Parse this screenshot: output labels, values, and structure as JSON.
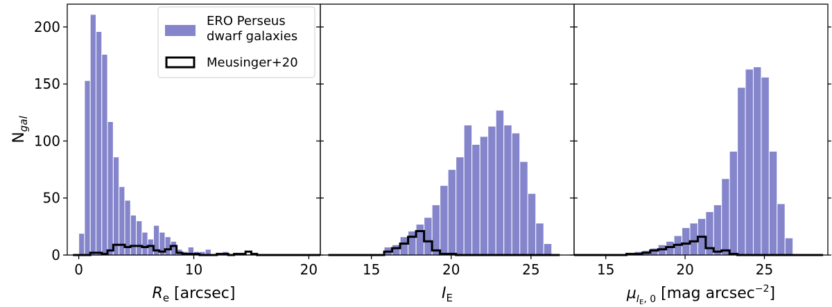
{
  "colors": {
    "bar_fill": "#8585cc",
    "bar_edge": "#ffffff",
    "step_line": "#000000",
    "frame": "#000000"
  },
  "legend": {
    "placement": "top-right of first panel",
    "entries": [
      {
        "label_line1": "ERO Perseus",
        "label_line2": "dwarf galaxies",
        "style": "filled"
      },
      {
        "label_line1": "Meusinger+20",
        "label_line2": "",
        "style": "step"
      }
    ]
  },
  "y_axis": {
    "label_main": "N",
    "label_sub": "gal",
    "lim": [
      0,
      220
    ],
    "ticks": [
      0,
      50,
      100,
      150,
      200
    ]
  },
  "chart_data": [
    {
      "type": "bar",
      "panel": "Re",
      "xlabel_main": "R",
      "xlabel_sub": "e",
      "xlabel_rest": " [arcsec]",
      "xlim": [
        -1,
        21
      ],
      "xticks": [
        0,
        10,
        20
      ],
      "ero_bins": {
        "start": 0.0,
        "width": 0.5,
        "values": [
          19,
          153,
          211,
          196,
          176,
          117,
          86,
          60,
          48,
          35,
          30,
          20,
          14,
          26,
          20,
          16,
          12,
          5,
          3,
          7,
          3,
          3,
          5,
          1,
          2,
          3,
          1,
          1,
          1,
          1,
          1
        ]
      },
      "meusinger_bins": {
        "start": 0.0,
        "width": 0.5,
        "values": [
          0,
          0,
          2,
          2,
          1,
          4,
          9,
          9,
          7,
          8,
          8,
          7,
          8,
          4,
          3,
          5,
          8,
          2,
          1,
          1,
          1,
          0,
          0,
          0,
          1,
          1,
          0,
          1,
          1,
          3,
          1,
          0,
          0,
          0,
          0
        ]
      },
      "meusinger_extent": [
        -0.5,
        21
      ]
    },
    {
      "type": "bar",
      "panel": "IE",
      "xlabel_main": "I",
      "xlabel_sub": "E",
      "xlabel_rest": "",
      "xlim": [
        11.8,
        27.7
      ],
      "xticks": [
        15,
        20,
        25
      ],
      "ero_bins": {
        "start": 15.8,
        "width": 0.5,
        "values": [
          7,
          9,
          16,
          21,
          27,
          33,
          44,
          61,
          75,
          86,
          114,
          97,
          104,
          113,
          127,
          114,
          107,
          82,
          54,
          28,
          10
        ]
      },
      "meusinger_bins": {
        "start": 15.8,
        "width": 0.5,
        "values": [
          3,
          6,
          10,
          16,
          21,
          12,
          4,
          1,
          1
        ]
      },
      "meusinger_extent": [
        12.3,
        26.8
      ]
    },
    {
      "type": "bar",
      "panel": "mu0",
      "xlabel_main": "μ",
      "xlabel_sub": "I",
      "xlabel_subsub": "E",
      "xlabel_sub2": ", 0",
      "xlabel_rest": " [mag arcsec",
      "xlabel_sup": "−2",
      "xlabel_end": "]",
      "xlim": [
        13,
        29
      ],
      "xticks": [
        15,
        20,
        25
      ],
      "ero_bins": {
        "start": 16.3,
        "width": 0.5,
        "values": [
          2,
          3,
          4,
          6,
          9,
          12,
          17,
          24,
          28,
          32,
          38,
          44,
          67,
          91,
          147,
          163,
          165,
          156,
          91,
          45,
          15
        ]
      },
      "meusinger_bins": {
        "start": 16.3,
        "width": 0.5,
        "values": [
          1,
          1,
          2,
          4,
          5,
          7,
          9,
          10,
          12,
          16,
          6,
          3,
          4,
          1
        ]
      },
      "meusinger_extent": [
        13,
        28.7
      ]
    }
  ]
}
